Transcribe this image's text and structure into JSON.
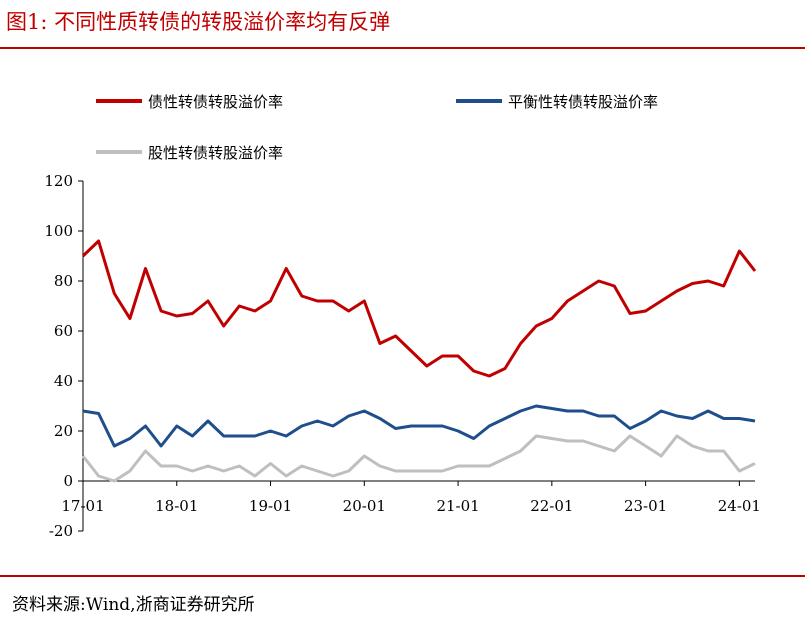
{
  "figure": {
    "title": "图1:   不同性质转债的转股溢价率均有反弹",
    "source": "资料来源:Wind,浙商证券研究所"
  },
  "colors": {
    "title": "#c00000",
    "bond_like": "#c00000",
    "balanced": "#1f4e8c",
    "equity_like": "#bfbfbf"
  },
  "chart_data": {
    "type": "line",
    "title": "",
    "xlabel": "",
    "ylabel": "",
    "x_ticks": [
      "17-01",
      "18-01",
      "19-01",
      "20-01",
      "21-01",
      "22-01",
      "23-01",
      "24-01"
    ],
    "y_ticks": [
      "120",
      "100",
      "80",
      "60",
      "40",
      "20",
      "0",
      "-20"
    ],
    "ylim": [
      -20,
      120
    ],
    "xlim": [
      "2017-01",
      "2024-03"
    ],
    "grid": false,
    "legend": "top",
    "x": [
      "2017-01",
      "2017-03",
      "2017-05",
      "2017-07",
      "2017-09",
      "2017-11",
      "2018-01",
      "2018-03",
      "2018-05",
      "2018-07",
      "2018-09",
      "2018-11",
      "2019-01",
      "2019-03",
      "2019-05",
      "2019-07",
      "2019-09",
      "2019-11",
      "2020-01",
      "2020-03",
      "2020-05",
      "2020-07",
      "2020-09",
      "2020-11",
      "2021-01",
      "2021-03",
      "2021-05",
      "2021-07",
      "2021-09",
      "2021-11",
      "2022-01",
      "2022-03",
      "2022-05",
      "2022-07",
      "2022-09",
      "2022-11",
      "2023-01",
      "2023-03",
      "2023-05",
      "2023-07",
      "2023-09",
      "2023-11",
      "2024-01",
      "2024-03"
    ],
    "series": [
      {
        "name": "债性转债转股溢价率",
        "values": [
          90,
          96,
          75,
          65,
          85,
          68,
          66,
          67,
          72,
          62,
          70,
          68,
          72,
          85,
          74,
          72,
          72,
          68,
          72,
          55,
          58,
          52,
          46,
          50,
          50,
          44,
          42,
          45,
          55,
          62,
          65,
          72,
          76,
          80,
          78,
          67,
          68,
          72,
          76,
          79,
          80,
          78,
          92,
          84
        ]
      },
      {
        "name": "平衡性转债转股溢价率",
        "values": [
          28,
          27,
          14,
          17,
          22,
          14,
          22,
          18,
          24,
          18,
          18,
          18,
          20,
          18,
          22,
          24,
          22,
          26,
          28,
          25,
          21,
          22,
          22,
          22,
          20,
          17,
          22,
          25,
          28,
          30,
          29,
          28,
          28,
          26,
          26,
          21,
          24,
          28,
          26,
          25,
          28,
          25,
          25,
          24
        ]
      },
      {
        "name": "股性转债转股溢价率",
        "values": [
          10,
          2,
          0,
          4,
          12,
          6,
          6,
          4,
          6,
          4,
          6,
          2,
          7,
          2,
          6,
          4,
          2,
          4,
          10,
          6,
          4,
          4,
          4,
          4,
          6,
          6,
          6,
          9,
          12,
          18,
          17,
          16,
          16,
          14,
          12,
          18,
          14,
          10,
          18,
          14,
          12,
          12,
          4,
          7
        ]
      }
    ]
  }
}
